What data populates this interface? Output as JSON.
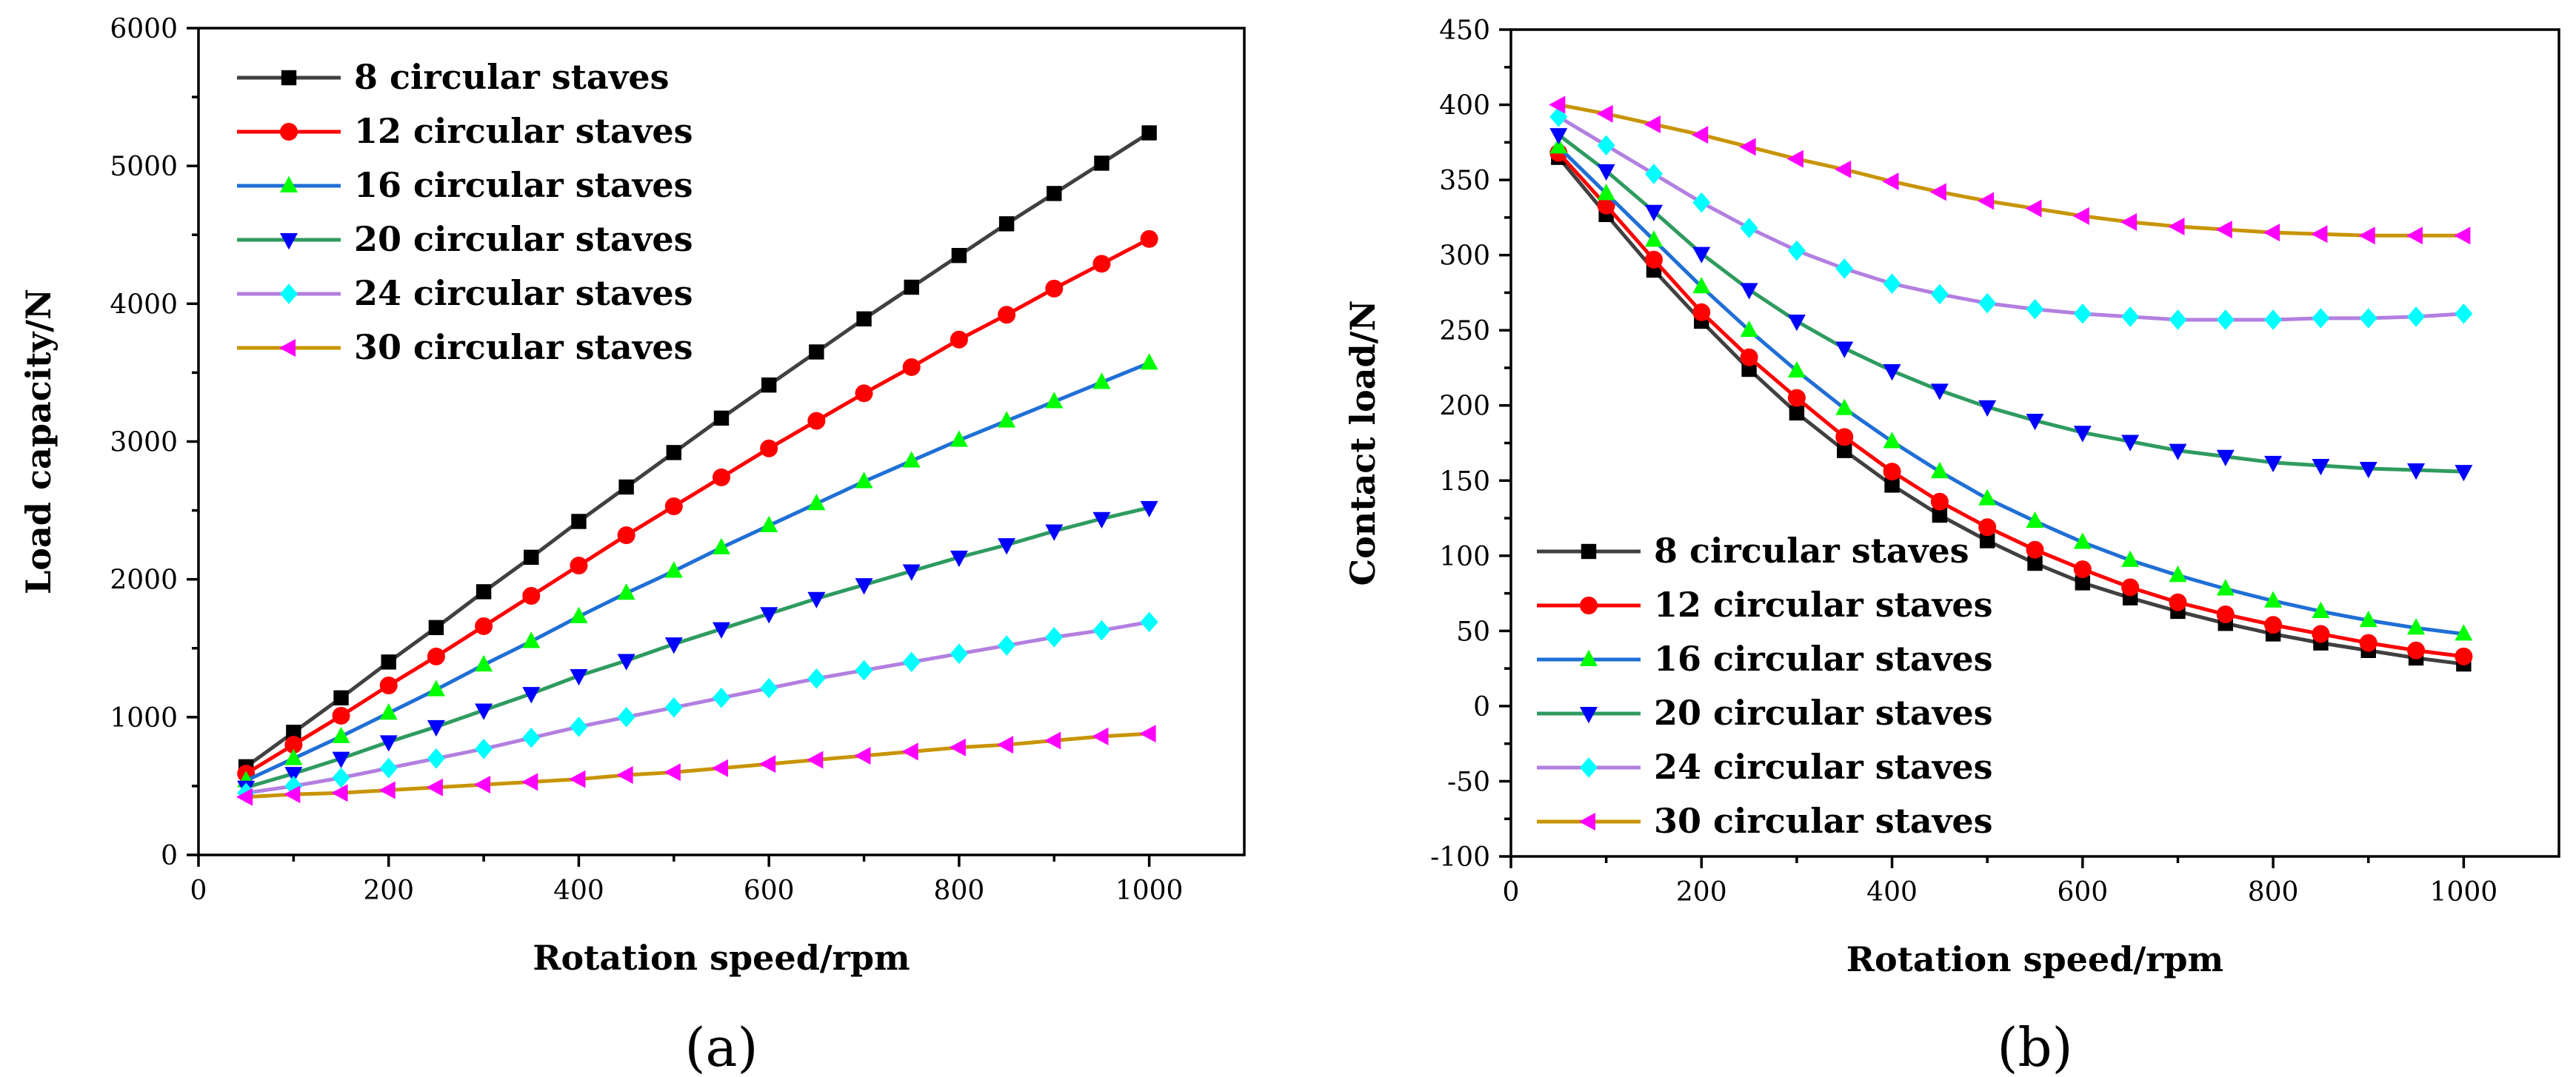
{
  "chart_data": [
    {
      "type": "line",
      "panel_label": "(a)",
      "xlabel": "Rotation speed/rpm",
      "ylabel": "Load capacity/N",
      "xlim": [
        0,
        1100
      ],
      "ylim": [
        0,
        6000
      ],
      "xticks": [
        0,
        200,
        400,
        600,
        800,
        1000
      ],
      "yticks": [
        0,
        1000,
        2000,
        3000,
        4000,
        5000,
        6000
      ],
      "legend_position": "top-left",
      "grid": false,
      "x": [
        50,
        100,
        150,
        200,
        250,
        300,
        350,
        400,
        450,
        500,
        550,
        600,
        650,
        700,
        750,
        800,
        850,
        900,
        950,
        1000
      ],
      "series": [
        {
          "name": "8 circular staves",
          "color": "#000000",
          "line_color": "#404040",
          "marker": "square",
          "values": [
            640,
            890,
            1140,
            1400,
            1650,
            1910,
            2160,
            2420,
            2670,
            2920,
            3170,
            3410,
            3650,
            3890,
            4120,
            4350,
            4580,
            4800,
            5020,
            5240
          ]
        },
        {
          "name": "12 circular staves",
          "color": "#ff0000",
          "line_color": "#ff0000",
          "marker": "circle",
          "values": [
            590,
            800,
            1010,
            1230,
            1440,
            1660,
            1880,
            2100,
            2320,
            2530,
            2740,
            2950,
            3150,
            3350,
            3540,
            3740,
            3920,
            4110,
            4290,
            4470
          ]
        },
        {
          "name": "16 circular staves",
          "color": "#00ff00",
          "line_color": "#1f6fd6",
          "marker": "triangle-up",
          "values": [
            540,
            700,
            860,
            1030,
            1200,
            1380,
            1550,
            1730,
            1900,
            2060,
            2230,
            2390,
            2550,
            2710,
            2860,
            3010,
            3150,
            3290,
            3430,
            3570
          ]
        },
        {
          "name": "20 circular staves",
          "color": "#0000ff",
          "line_color": "#2e9b5f",
          "marker": "triangle-down",
          "values": [
            490,
            590,
            700,
            820,
            930,
            1050,
            1170,
            1300,
            1410,
            1530,
            1640,
            1750,
            1860,
            1960,
            2060,
            2160,
            2250,
            2350,
            2440,
            2520
          ]
        },
        {
          "name": "24 circular staves",
          "color": "#00ffff",
          "line_color": "#b27fe0",
          "marker": "diamond",
          "values": [
            450,
            500,
            560,
            630,
            700,
            770,
            850,
            930,
            1000,
            1070,
            1140,
            1210,
            1280,
            1340,
            1400,
            1460,
            1520,
            1580,
            1630,
            1690
          ]
        },
        {
          "name": "30 circular staves",
          "color": "#ff00ff",
          "line_color": "#c89400",
          "marker": "triangle-left",
          "values": [
            420,
            440,
            450,
            470,
            490,
            510,
            530,
            550,
            580,
            600,
            630,
            660,
            690,
            720,
            750,
            780,
            800,
            830,
            860,
            880
          ]
        }
      ]
    },
    {
      "type": "line",
      "panel_label": "(b)",
      "xlabel": "Rotation speed/rpm",
      "ylabel": "Contact load/N",
      "xlim": [
        0,
        1100
      ],
      "ylim": [
        -100,
        450
      ],
      "xticks": [
        0,
        200,
        400,
        600,
        800,
        1000
      ],
      "yticks": [
        -100,
        -50,
        0,
        50,
        100,
        150,
        200,
        250,
        300,
        350,
        400,
        450
      ],
      "legend_position": "bottom-left",
      "grid": false,
      "x": [
        50,
        100,
        150,
        200,
        250,
        300,
        350,
        400,
        450,
        500,
        550,
        600,
        650,
        700,
        750,
        800,
        850,
        900,
        950,
        1000
      ],
      "series": [
        {
          "name": "8 circular staves",
          "color": "#000000",
          "line_color": "#404040",
          "marker": "square",
          "values": [
            365,
            327,
            290,
            256,
            224,
            195,
            170,
            147,
            127,
            110,
            95,
            82,
            72,
            63,
            55,
            48,
            42,
            37,
            32,
            28
          ]
        },
        {
          "name": "12 circular staves",
          "color": "#ff0000",
          "line_color": "#ff0000",
          "marker": "circle",
          "values": [
            368,
            333,
            297,
            262,
            232,
            205,
            179,
            156,
            136,
            119,
            104,
            91,
            79,
            69,
            61,
            54,
            48,
            42,
            37,
            33
          ]
        },
        {
          "name": "16 circular staves",
          "color": "#00ff00",
          "line_color": "#1f6fd6",
          "marker": "triangle-up",
          "values": [
            372,
            341,
            310,
            279,
            250,
            223,
            198,
            176,
            156,
            138,
            123,
            109,
            97,
            87,
            78,
            70,
            63,
            57,
            52,
            48
          ]
        },
        {
          "name": "20 circular staves",
          "color": "#0000ff",
          "line_color": "#2e9b5f",
          "marker": "triangle-down",
          "values": [
            380,
            356,
            329,
            301,
            277,
            256,
            238,
            223,
            210,
            199,
            190,
            182,
            176,
            170,
            166,
            162,
            160,
            158,
            157,
            156
          ]
        },
        {
          "name": "24 circular staves",
          "color": "#00ffff",
          "line_color": "#b27fe0",
          "marker": "diamond",
          "values": [
            392,
            373,
            354,
            335,
            318,
            303,
            291,
            281,
            274,
            268,
            264,
            261,
            259,
            257,
            257,
            257,
            258,
            258,
            259,
            261
          ]
        },
        {
          "name": "30 circular staves",
          "color": "#ff00ff",
          "line_color": "#c89400",
          "marker": "triangle-left",
          "values": [
            400,
            394,
            387,
            380,
            372,
            364,
            357,
            349,
            342,
            336,
            331,
            326,
            322,
            319,
            317,
            315,
            314,
            313,
            313,
            313
          ]
        }
      ]
    }
  ]
}
